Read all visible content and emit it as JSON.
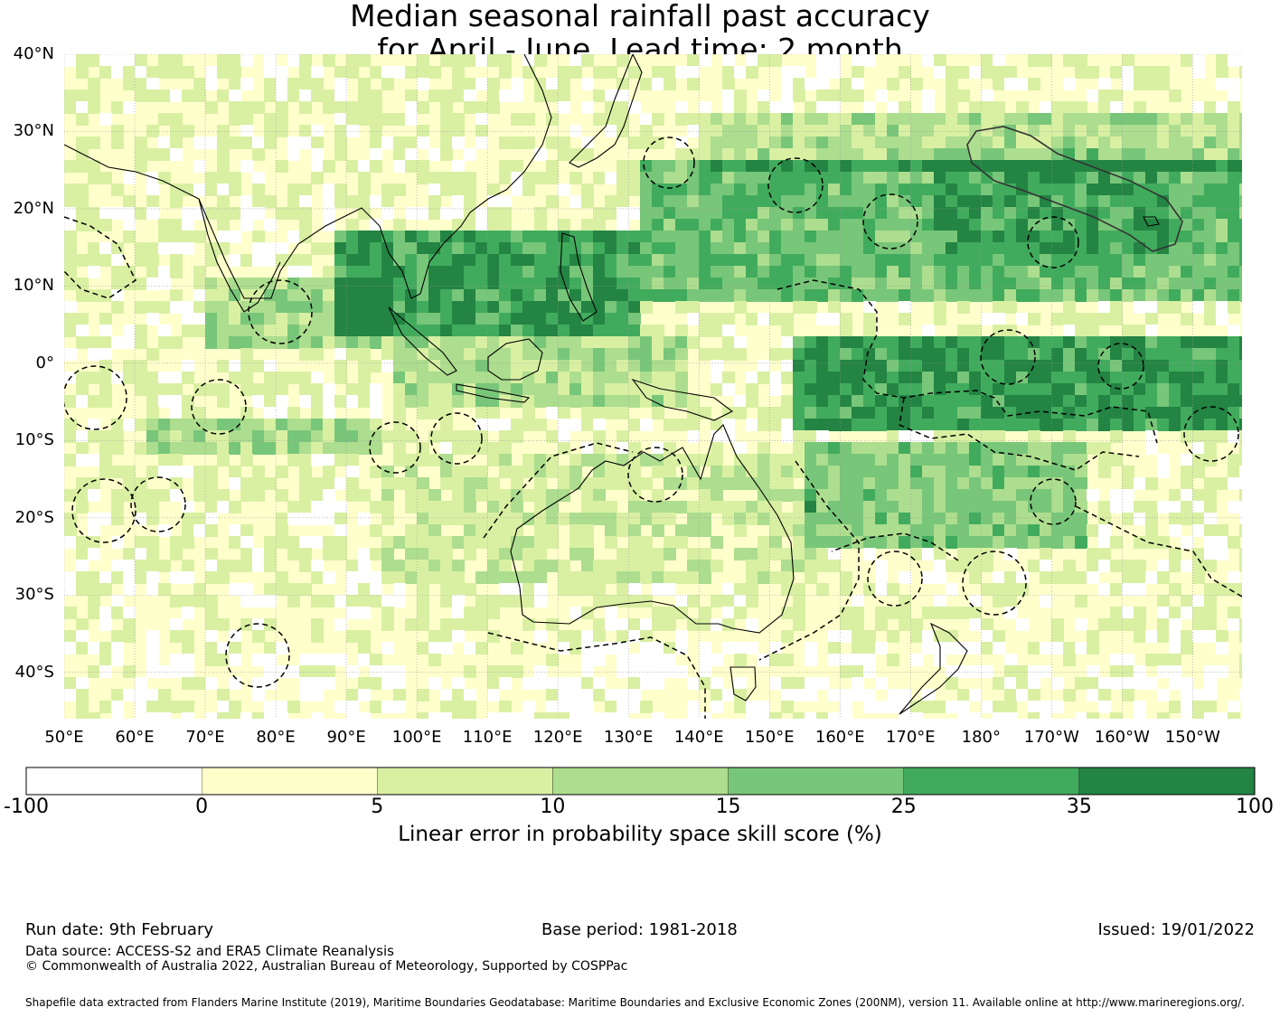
{
  "title": {
    "line1": "Median seasonal rainfall past accuracy",
    "line2": "for April - June. Lead time: 2 month"
  },
  "map": {
    "lat_labels": [
      "40°N",
      "30°N",
      "20°N",
      "10°N",
      "0°",
      "10°S",
      "20°S",
      "30°S",
      "40°S"
    ],
    "lon_labels": [
      "50°E",
      "60°E",
      "70°E",
      "80°E",
      "90°E",
      "100°E",
      "110°E",
      "120°E",
      "130°E",
      "140°E",
      "150°E",
      "160°E",
      "170°E",
      "180°",
      "170°W",
      "160°W",
      "150°W"
    ],
    "extent": {
      "lon_min": 50,
      "lon_max": 217,
      "lat_min": -46,
      "lat_max": 40
    }
  },
  "colorbar": {
    "ticks": [
      "-100",
      "0",
      "5",
      "10",
      "15",
      "25",
      "35",
      "100"
    ],
    "colors": [
      "#ffffff",
      "#ffffcc",
      "#d9f0a3",
      "#addd8e",
      "#78c679",
      "#41ab5d",
      "#238443"
    ],
    "label": "Linear error in probability space skill score (%)"
  },
  "footer": {
    "run_date": "Run date: 9th February",
    "base_period": "Base period: 1981-2018",
    "issued": "Issued: 19/01/2022",
    "data_source": "Data source: ACCESS-S2 and ERA5 Climate Reanalysis",
    "copyright": "© Commonwealth of Australia 2022, Australian Bureau of Meteorology, Supported by COSPPac",
    "shapefile": "Shapefile data extracted from Flanders Marine Institute (2019), Maritime Boundaries Geodatabase: Maritime Boundaries and Exclusive Economic Zones (200NM), version 11. Available online at http://www.marineregions.org/."
  }
}
